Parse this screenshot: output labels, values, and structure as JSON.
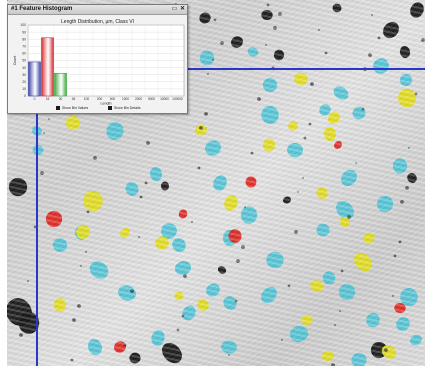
{
  "window": {
    "title": "#1 Feature Histogram",
    "restore_glyph": "▭",
    "close_glyph": "✕"
  },
  "legend": {
    "show_bin_values": "Show Bin Values",
    "show_bin_details": "Show Bin Details"
  },
  "colors": {
    "particle_cyan": "#4cc3d6",
    "particle_yellow": "#e3dd1a",
    "particle_red": "#e0231c",
    "pore_black": "#121212",
    "guide_line": "#2a36c8",
    "bar_blue": "#3a44a8",
    "bar_red": "#d62a30",
    "bar_green": "#3aa83a"
  },
  "chart_data": {
    "type": "bar",
    "title": "Length Distribution, µm, Class VI",
    "xlabel": "Length",
    "ylabel": "Count",
    "ylim": [
      0,
      100
    ],
    "yticks": [
      0,
      10,
      20,
      30,
      40,
      50,
      60,
      70,
      80,
      90,
      100
    ],
    "categories": [
      "0",
      "15",
      "30",
      "45",
      "100",
      "200",
      "500",
      "1000",
      "2000",
      "5000",
      "10000",
      "100000"
    ],
    "values": [
      48,
      82,
      32,
      0,
      0,
      0,
      0,
      0,
      0,
      0,
      0,
      0
    ],
    "bar_colors": [
      "#3a44a8",
      "#d62a30",
      "#3aa83a"
    ],
    "grid": true,
    "legend": "bottom"
  }
}
